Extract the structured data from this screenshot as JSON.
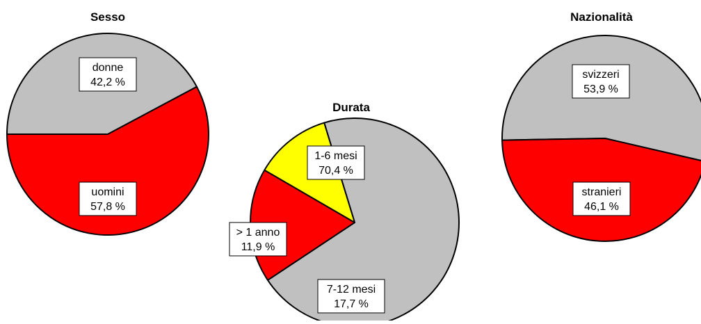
{
  "chart_data": [
    {
      "type": "pie",
      "title": "Sesso",
      "slices": [
        {
          "label": "donne",
          "value": 42.2,
          "value_text": "42,2 %",
          "color": "#c0c0c0"
        },
        {
          "label": "uomini",
          "value": 57.8,
          "value_text": "57,8 %",
          "color": "#ff0000"
        }
      ]
    },
    {
      "type": "pie",
      "title": "Durata",
      "slices": [
        {
          "label": "1-6 mesi",
          "value": 70.4,
          "value_text": "70,4 %",
          "color": "#c0c0c0"
        },
        {
          "label": "7-12 mesi",
          "value": 17.7,
          "value_text": "17,7 %",
          "color": "#ff0000"
        },
        {
          "label": "> 1 anno",
          "value": 11.9,
          "value_text": "11,9 %",
          "color": "#ffff00"
        }
      ]
    },
    {
      "type": "pie",
      "title": "Nazionalità",
      "slices": [
        {
          "label": "svizzeri",
          "value": 53.9,
          "value_text": "53,9 %",
          "color": "#c0c0c0"
        },
        {
          "label": "stranieri",
          "value": 46.1,
          "value_text": "46,1 %",
          "color": "#ff0000"
        }
      ]
    }
  ]
}
